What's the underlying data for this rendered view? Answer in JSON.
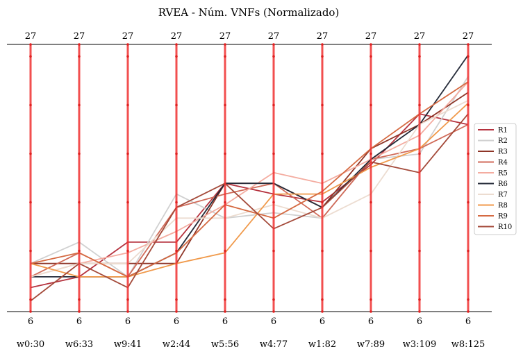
{
  "chart_data": {
    "type": "line",
    "title": "RVEA - Núm. VNFs (Normalizado)",
    "axes": [
      "w0:30",
      "w6:33",
      "w9:41",
      "w2:44",
      "w5:56",
      "w4:77",
      "w1:82",
      "w7:89",
      "w3:109",
      "w8:125"
    ],
    "axis_top_labels": [
      "27",
      "27",
      "27",
      "27",
      "27",
      "27",
      "27",
      "27",
      "27",
      "27"
    ],
    "axis_bottom_labels": [
      "6",
      "6",
      "6",
      "6",
      "6",
      "6",
      "6",
      "6",
      "6",
      "6"
    ],
    "ylim": [
      0,
      1
    ],
    "axis_color": "#f03030",
    "legend_position": "right",
    "series": [
      {
        "name": "R1",
        "color": "#b5323e",
        "values": [
          0.09,
          0.13,
          0.26,
          0.26,
          0.48,
          0.44,
          0.41,
          0.55,
          0.74,
          0.7
        ]
      },
      {
        "name": "R2",
        "color": "#d0d0d0",
        "values": [
          0.18,
          0.26,
          0.13,
          0.44,
          0.35,
          0.37,
          0.35,
          0.57,
          0.59,
          0.88
        ]
      },
      {
        "name": "R3",
        "color": "#8e3527",
        "values": [
          0.18,
          0.18,
          0.18,
          0.18,
          0.48,
          0.48,
          0.39,
          0.61,
          0.7,
          0.82
        ]
      },
      {
        "name": "R4",
        "color": "#d06a58",
        "values": [
          0.13,
          0.22,
          0.13,
          0.39,
          0.44,
          0.48,
          0.35,
          0.57,
          0.61,
          0.7
        ]
      },
      {
        "name": "R5",
        "color": "#f4aca0",
        "values": [
          0.13,
          0.18,
          0.22,
          0.3,
          0.4,
          0.52,
          0.48,
          0.57,
          0.66,
          0.86
        ]
      },
      {
        "name": "R6",
        "color": "#242a38",
        "values": [
          0.13,
          0.13,
          0.13,
          0.22,
          0.48,
          0.48,
          0.39,
          0.57,
          0.7,
          0.96
        ]
      },
      {
        "name": "R7",
        "color": "#ecdcd0",
        "values": [
          0.13,
          0.18,
          0.18,
          0.35,
          0.35,
          0.4,
          0.35,
          0.44,
          0.7,
          0.79
        ]
      },
      {
        "name": "R8",
        "color": "#f0994a",
        "values": [
          0.18,
          0.13,
          0.13,
          0.18,
          0.22,
          0.44,
          0.44,
          0.54,
          0.61,
          0.78
        ]
      },
      {
        "name": "R9",
        "color": "#d56a42",
        "values": [
          0.18,
          0.22,
          0.13,
          0.22,
          0.4,
          0.35,
          0.45,
          0.61,
          0.74,
          0.86
        ]
      },
      {
        "name": "R10",
        "color": "#a44a3a",
        "values": [
          0.04,
          0.18,
          0.09,
          0.39,
          0.48,
          0.31,
          0.39,
          0.56,
          0.52,
          0.74
        ]
      }
    ]
  }
}
